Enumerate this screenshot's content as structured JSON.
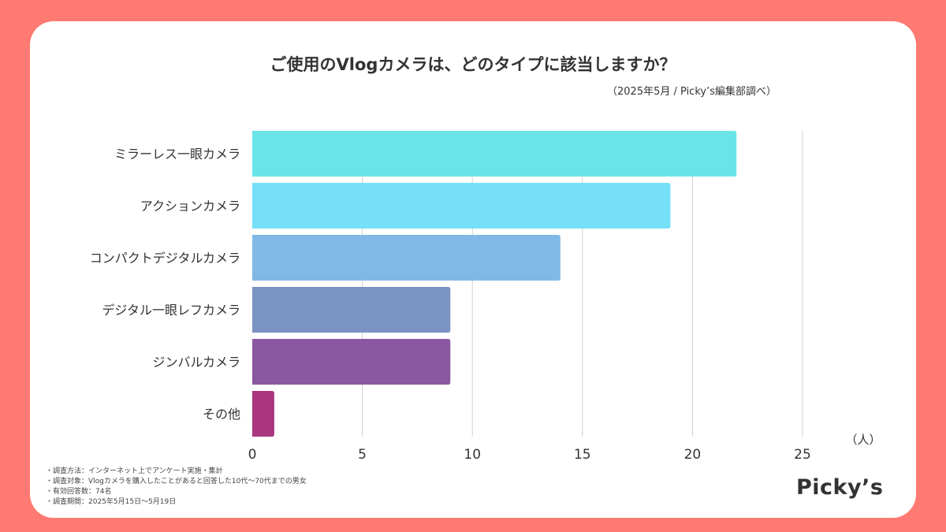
{
  "chart_data": {
    "type": "bar",
    "orientation": "horizontal",
    "title": "ご使用のVlogカメラは、どのタイプに該当しますか？",
    "subtitle": "（2025年5月 / Picky’s編集部調べ）",
    "categories": [
      "ミラーレス一眼カメラ",
      "アクションカメラ",
      "コンパクトデジタルカメラ",
      "デジタル一眼レフカメラ",
      "ジンバルカメラ",
      "その他"
    ],
    "values": [
      22,
      19,
      14,
      9,
      9,
      1
    ],
    "colors": [
      "#6ae5e7",
      "#77e0f9",
      "#80b9e6",
      "#7b93c3",
      "#8a58a0",
      "#a9367f"
    ],
    "xlabel": "（人）",
    "xlim": [
      0,
      25
    ],
    "xticks": [
      "0",
      "5",
      "10",
      "15",
      "20",
      "25"
    ],
    "grid": true
  },
  "notes": [
    "・調査方法：インターネット上でアンケート実施・集計",
    "・調査対象：Vlogカメラを購入したことがあると回答した10代〜70代までの男女",
    "・有効回答数：74名",
    "・調査期間：2025年5月15日〜5月19日"
  ],
  "logo": "Picky’s"
}
